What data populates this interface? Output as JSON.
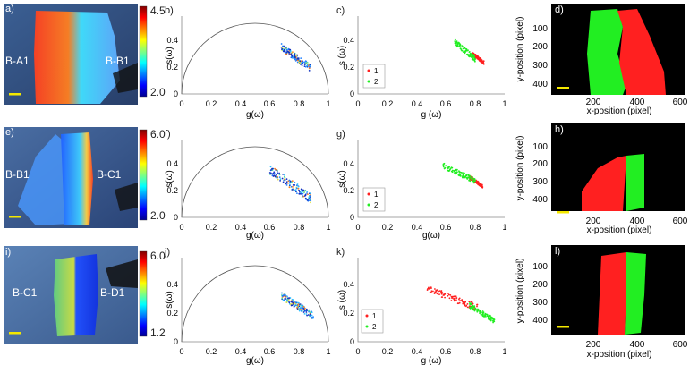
{
  "figure": {
    "rows": [
      {
        "image_panel": {
          "letter": "a)",
          "label_left": "B-A1",
          "label_right": "B-B1",
          "colorbar": {
            "max": "4.5",
            "min": "2.0"
          }
        },
        "phasor_panel": {
          "letter": "b)",
          "ticks_x": [
            "0",
            "0.2",
            "0.4",
            "0.6",
            "0.8",
            "1"
          ],
          "ticks_y": [
            "0",
            "0.2",
            "0.4"
          ],
          "xlabel": "g(ω)",
          "ylabel": "s(ω)"
        },
        "cluster_panel": {
          "letter": "c)",
          "ticks_x": [
            "0",
            "0.2",
            "0.4",
            "0.6",
            "0.8",
            "1"
          ],
          "ticks_y": [
            "0",
            "0.2",
            "0.4"
          ],
          "xlabel": "g (ω)",
          "ylabel": "s (ω)",
          "legend": [
            "1",
            "2"
          ]
        },
        "map_panel": {
          "letter": "d)",
          "ticks_x": [
            "200",
            "400",
            "600"
          ],
          "ticks_y": [
            "100",
            "200",
            "300",
            "400"
          ],
          "xlabel": "x-position (pixel)",
          "ylabel": "y-position (pixel)"
        }
      },
      {
        "image_panel": {
          "letter": "e)",
          "label_left": "B-B1",
          "label_right": "B-C1",
          "colorbar": {
            "max": "6.0",
            "min": "2.0"
          }
        },
        "phasor_panel": {
          "letter": "f)",
          "ticks_x": [
            "0",
            "0.2",
            "0.4",
            "0.6",
            "0.8",
            "1"
          ],
          "ticks_y": [
            "0",
            "0.2",
            "0.4"
          ],
          "xlabel": "g(ω)",
          "ylabel": "s(ω)"
        },
        "cluster_panel": {
          "letter": "g)",
          "ticks_x": [
            "0",
            "0.2",
            "0.4",
            "0.6",
            "0.8",
            "1"
          ],
          "ticks_y": [
            "0",
            "0.2",
            "0.4"
          ],
          "xlabel": "g(ω)",
          "ylabel": "s(ω)",
          "legend": [
            "1",
            "2"
          ]
        },
        "map_panel": {
          "letter": "h)",
          "ticks_x": [
            "200",
            "400",
            "600"
          ],
          "ticks_y": [
            "100",
            "200",
            "300",
            "400"
          ],
          "xlabel": "x-position (pixel)",
          "ylabel": "y-position (pixel)"
        }
      },
      {
        "image_panel": {
          "letter": "i)",
          "label_left": "B-C1",
          "label_right": "B-D1",
          "colorbar": {
            "max": "6.0",
            "min": "1.2"
          }
        },
        "phasor_panel": {
          "letter": "j)",
          "ticks_x": [
            "0",
            "0.2",
            "0.4",
            "0.6",
            "0.8",
            "1"
          ],
          "ticks_y": [
            "0",
            "0.2",
            "0.4"
          ],
          "xlabel": "g(ω)",
          "ylabel": "s(ω)"
        },
        "cluster_panel": {
          "letter": "k)",
          "ticks_x": [
            "0",
            "0.2",
            "0.4",
            "0.6",
            "0.8",
            "1"
          ],
          "ticks_y": [
            "0",
            "0.2",
            "0.4"
          ],
          "xlabel": "g (ω)",
          "ylabel": "s (ω)",
          "legend": [
            "1",
            "2"
          ]
        },
        "map_panel": {
          "letter": "l)",
          "ticks_x": [
            "200",
            "400",
            "600"
          ],
          "ticks_y": [
            "100",
            "200",
            "300",
            "400"
          ],
          "xlabel": "x-position (pixel)",
          "ylabel": "y-position (pixel)"
        }
      }
    ]
  },
  "colors": {
    "cluster1": "#ff2020",
    "cluster2": "#22ee22",
    "scale_bar": "#f4e800",
    "map_background": "#000000"
  },
  "chart_data": [
    {
      "type": "scatter",
      "panel": "b)",
      "xlim": [
        0,
        1
      ],
      "ylim": [
        0,
        0.6
      ],
      "semicircle": true,
      "cloud": {
        "g_range": [
          0.68,
          0.88
        ],
        "s_range": [
          0.2,
          0.36
        ]
      }
    },
    {
      "type": "scatter",
      "panel": "c)",
      "xlim": [
        0,
        1
      ],
      "ylim": [
        0,
        0.6
      ],
      "series": [
        {
          "name": "1",
          "g_range": [
            0.78,
            0.86
          ],
          "s_range": [
            0.24,
            0.31
          ]
        },
        {
          "name": "2",
          "g_range": [
            0.66,
            0.8
          ],
          "s_range": [
            0.27,
            0.4
          ]
        }
      ]
    },
    {
      "type": "scatter",
      "panel": "f)",
      "xlim": [
        0,
        1
      ],
      "ylim": [
        0,
        0.6
      ],
      "semicircle": true,
      "cloud": {
        "g_range": [
          0.6,
          0.88
        ],
        "s_range": [
          0.15,
          0.37
        ]
      }
    },
    {
      "type": "scatter",
      "panel": "g)",
      "xlim": [
        0,
        1
      ],
      "ylim": [
        0,
        0.6
      ],
      "series": [
        {
          "name": "1",
          "g_range": [
            0.76,
            0.85
          ],
          "s_range": [
            0.24,
            0.31
          ]
        },
        {
          "name": "2",
          "g_range": [
            0.58,
            0.8
          ],
          "s_range": [
            0.28,
            0.4
          ]
        }
      ]
    },
    {
      "type": "scatter",
      "panel": "j)",
      "xlim": [
        0,
        1
      ],
      "ylim": [
        0,
        0.6
      ],
      "semicircle": true,
      "cloud": {
        "g_range": [
          0.68,
          0.9
        ],
        "s_range": [
          0.18,
          0.33
        ]
      }
    },
    {
      "type": "scatter",
      "panel": "k)",
      "xlim": [
        0,
        1
      ],
      "ylim": [
        0,
        0.6
      ],
      "series": [
        {
          "name": "1",
          "g_range": [
            0.47,
            0.82
          ],
          "s_range": [
            0.24,
            0.38
          ]
        },
        {
          "name": "2",
          "g_range": [
            0.76,
            0.93
          ],
          "s_range": [
            0.15,
            0.26
          ]
        }
      ]
    }
  ]
}
